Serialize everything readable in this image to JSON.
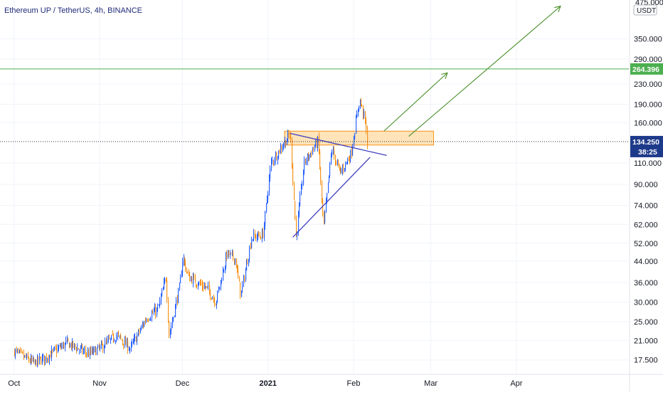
{
  "header": {
    "title": "Ethereum UP / TetherUS, 4h, BINANCE"
  },
  "price_axis": {
    "unit_label": "USDT",
    "top_label": "475.000",
    "ticks": [
      "350.000",
      "290.000",
      "230.000",
      "190.000",
      "160.000",
      "110.000",
      "90.000",
      "74.000",
      "62.000",
      "52.000",
      "44.000",
      "36.000",
      "30.000",
      "25.000",
      "21.000",
      "17.500"
    ]
  },
  "time_axis": {
    "labels": [
      {
        "text": "Oct",
        "bold": false
      },
      {
        "text": "Nov",
        "bold": false
      },
      {
        "text": "Dec",
        "bold": false
      },
      {
        "text": "2021",
        "bold": true
      },
      {
        "text": "Feb",
        "bold": false
      },
      {
        "text": "Mar",
        "bold": false
      },
      {
        "text": "Apr",
        "bold": false
      }
    ]
  },
  "markers": {
    "target_price": "264.396",
    "last_price": "134.250",
    "countdown": "38:25"
  },
  "colors": {
    "up": "#2962ff",
    "down": "#f7931a",
    "target_line": "#4caf50",
    "target_tag": "#4caf50",
    "last_tag": "#1e3a8a",
    "zone_fill": "#ffcc80",
    "zone_stroke": "#f7931a",
    "triangle": "#3f3fbf",
    "arrow": "#4a8f2a",
    "grid": "#f0f3fa"
  },
  "chart_data": {
    "type": "candlestick",
    "symbol": "Ethereum UP / TetherUS",
    "interval": "4h",
    "exchange": "BINANCE",
    "scale": "log",
    "y_unit": "USDT",
    "ylim": [
      15.5,
      490
    ],
    "x_ticks": [
      "Oct",
      "Nov",
      "Dec",
      "2021",
      "Feb",
      "Mar",
      "Apr"
    ],
    "price_path": [
      {
        "x": "2020-10-01",
        "y": 19.0
      },
      {
        "x": "2020-10-08",
        "y": 17.0
      },
      {
        "x": "2020-10-12",
        "y": 17.8
      },
      {
        "x": "2020-10-20",
        "y": 20.5
      },
      {
        "x": "2020-10-28",
        "y": 18.5
      },
      {
        "x": "2020-11-01",
        "y": 19.5
      },
      {
        "x": "2020-11-07",
        "y": 22.0
      },
      {
        "x": "2020-11-12",
        "y": 19.5
      },
      {
        "x": "2020-11-18",
        "y": 26.0
      },
      {
        "x": "2020-11-22",
        "y": 28.0
      },
      {
        "x": "2020-11-25",
        "y": 38.0
      },
      {
        "x": "2020-11-26",
        "y": 22.0
      },
      {
        "x": "2020-11-30",
        "y": 35.0
      },
      {
        "x": "2020-12-01",
        "y": 46.0
      },
      {
        "x": "2020-12-03",
        "y": 38.0
      },
      {
        "x": "2020-12-10",
        "y": 34.0
      },
      {
        "x": "2020-12-13",
        "y": 30.0
      },
      {
        "x": "2020-12-17",
        "y": 47.0
      },
      {
        "x": "2020-12-20",
        "y": 45.0
      },
      {
        "x": "2020-12-22",
        "y": 32.0
      },
      {
        "x": "2020-12-26",
        "y": 55.0
      },
      {
        "x": "2020-12-30",
        "y": 56.0
      },
      {
        "x": "2021-01-02",
        "y": 110.0
      },
      {
        "x": "2021-01-09",
        "y": 145.0
      },
      {
        "x": "2021-01-11",
        "y": 55.0
      },
      {
        "x": "2021-01-14",
        "y": 110.0
      },
      {
        "x": "2021-01-19",
        "y": 135.0
      },
      {
        "x": "2021-01-21",
        "y": 60.0
      },
      {
        "x": "2021-01-24",
        "y": 125.0
      },
      {
        "x": "2021-01-27",
        "y": 100.0
      },
      {
        "x": "2021-01-31",
        "y": 120.0
      },
      {
        "x": "2021-02-03",
        "y": 200.0
      },
      {
        "x": "2021-02-05",
        "y": 165.0
      },
      {
        "x": "2021-02-06",
        "y": 125.0
      }
    ],
    "annotations": {
      "resistance_zone": {
        "y_low": 130,
        "y_high": 148,
        "x_start": "2021-01-07",
        "x_end": "2021-03-02"
      },
      "triangle": {
        "upper": [
          {
            "x": "2021-01-09",
            "y": 145
          },
          {
            "x": "2021-02-13",
            "y": 118
          }
        ],
        "lower": [
          {
            "x": "2021-01-10",
            "y": 55
          },
          {
            "x": "2021-02-07",
            "y": 116
          }
        ]
      },
      "target_level": 264.396,
      "last_price_level": 134.25,
      "projection_arrows": [
        {
          "from": {
            "x": "2021-02-12",
            "y": 148
          },
          "to": {
            "x": "2021-03-07",
            "y": 255
          }
        },
        {
          "from": {
            "x": "2021-02-21",
            "y": 141
          },
          "to": {
            "x": "2021-04-17",
            "y": 475
          }
        }
      ]
    }
  }
}
